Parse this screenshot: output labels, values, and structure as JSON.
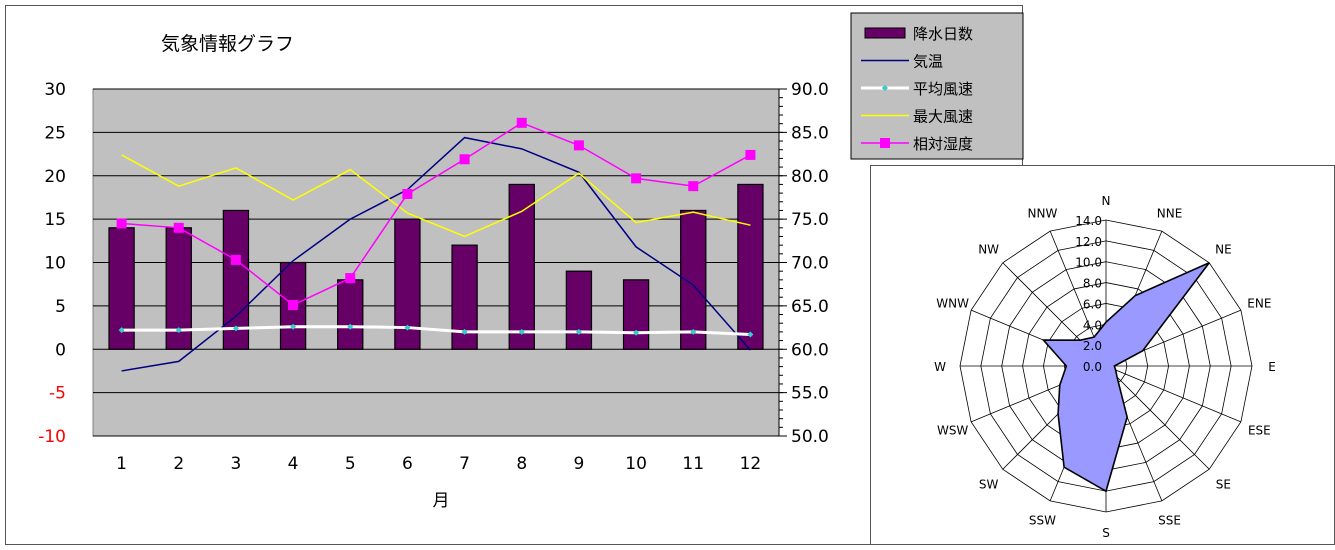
{
  "chart_data": [
    {
      "type": "bar+line",
      "title": "気象情報グラフ",
      "xlabel": "月",
      "categories": [
        "1",
        "2",
        "3",
        "4",
        "5",
        "6",
        "7",
        "8",
        "9",
        "10",
        "11",
        "12"
      ],
      "left_axis": {
        "ylim": [
          -10,
          30
        ],
        "ticks": [
          "30",
          "25",
          "20",
          "15",
          "10",
          "5",
          "0",
          "-5",
          "-10"
        ],
        "negative_color": "#ff0000"
      },
      "right_axis": {
        "ylim": [
          50,
          90
        ],
        "ticks": [
          "90.0",
          "85.0",
          "80.0",
          "75.0",
          "70.0",
          "65.0",
          "60.0",
          "55.0",
          "50.0"
        ]
      },
      "plot_background": "#c0c0c0",
      "grid": true,
      "legend_position": "top-right",
      "series": [
        {
          "name": "降水日数",
          "type": "bar",
          "axis": "left",
          "color": "#660066",
          "values": [
            14,
            14,
            16,
            10,
            8,
            15,
            12,
            19,
            9,
            8,
            16,
            19
          ]
        },
        {
          "name": "気温",
          "type": "line",
          "axis": "left",
          "color": "#000080",
          "values": [
            -2.5,
            -1.4,
            3.8,
            10.2,
            15.0,
            18.4,
            24.4,
            23.1,
            20.4,
            11.8,
            7.4,
            -0.1
          ]
        },
        {
          "name": "平均風速",
          "type": "line",
          "axis": "left",
          "color": "#ffffff",
          "marker_color": "#33cccc",
          "values": [
            2.2,
            2.2,
            2.4,
            2.6,
            2.6,
            2.5,
            2.0,
            2.0,
            2.0,
            1.9,
            2.0,
            1.7
          ]
        },
        {
          "name": "最大風速",
          "type": "line",
          "axis": "left",
          "color": "#ffff00",
          "values": [
            22.4,
            18.8,
            20.9,
            17.2,
            20.7,
            15.7,
            13.0,
            15.9,
            20.3,
            14.6,
            15.8,
            14.3
          ]
        },
        {
          "name": "相対湿度",
          "type": "line",
          "axis": "right",
          "color": "#ff00ff",
          "marker": "square",
          "values": [
            74.5,
            74.0,
            70.3,
            65.1,
            68.2,
            77.9,
            81.9,
            86.1,
            83.5,
            79.7,
            78.8,
            82.4
          ]
        }
      ]
    },
    {
      "type": "radar",
      "directions": [
        "N",
        "NNE",
        "NE",
        "ENE",
        "E",
        "ESE",
        "SE",
        "SSE",
        "S",
        "SSW",
        "SW",
        "WSW",
        "W",
        "WNW",
        "NW",
        "NNW"
      ],
      "rlim": [
        0,
        14
      ],
      "ticks": [
        "0.0",
        "2.0",
        "4.0",
        "6.0",
        "8.0",
        "10.0",
        "12.0",
        "14.0"
      ],
      "fill_color": "#9999ff",
      "values": [
        4.2,
        7.3,
        14.0,
        3.8,
        0.8,
        1.0,
        1.5,
        5.3,
        12.0,
        10.5,
        6.5,
        4.8,
        3.8,
        6.5,
        3.5,
        3.0
      ]
    }
  ]
}
